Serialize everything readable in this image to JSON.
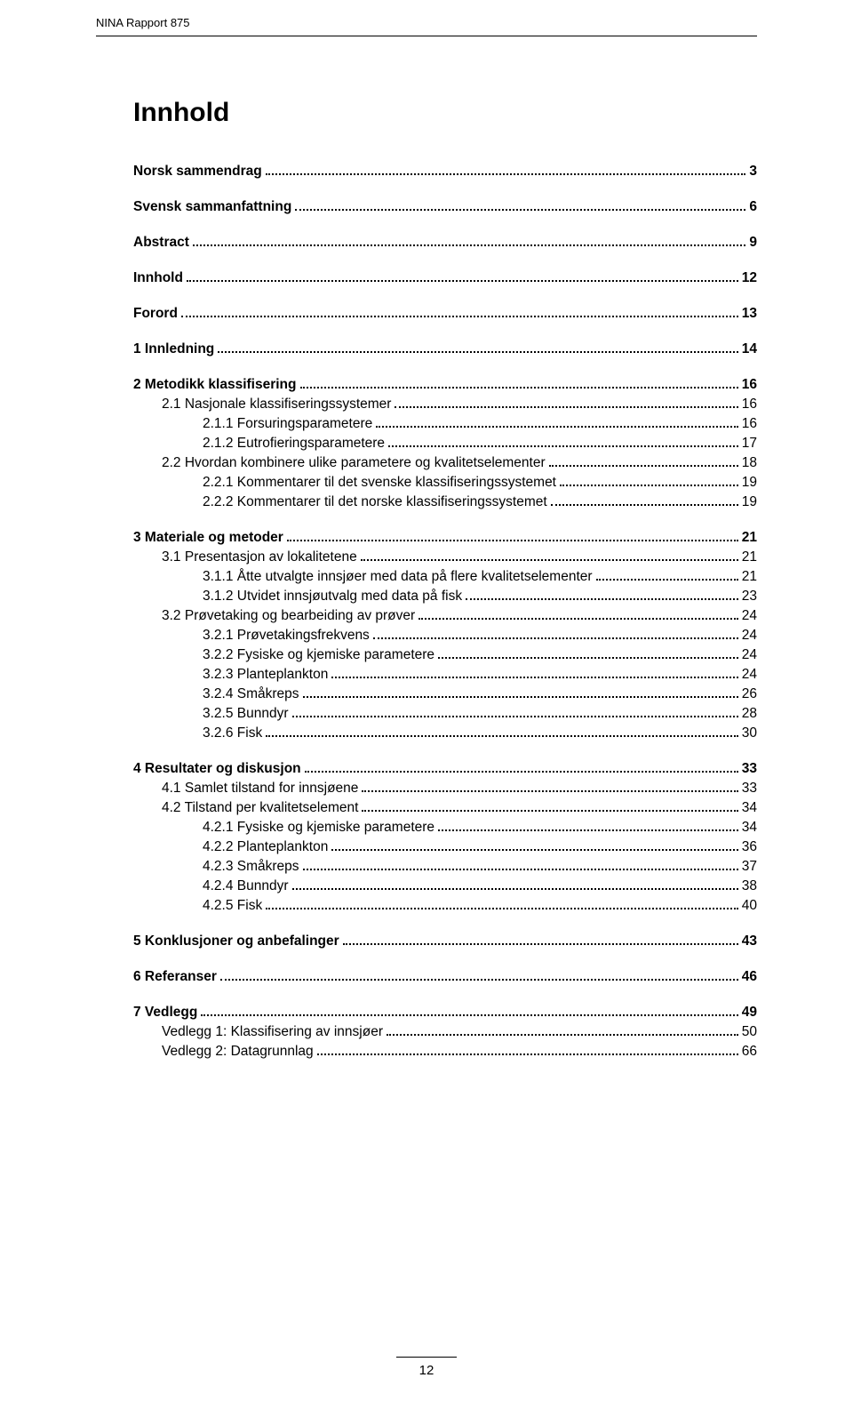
{
  "header": {
    "report_label": "NINA Rapport 875"
  },
  "title": "Innhold",
  "footer": {
    "page_number": "12"
  },
  "toc": [
    {
      "type": "block",
      "items": [
        {
          "label": "Norsk sammendrag",
          "page": "3",
          "indent": 0,
          "bold": true
        }
      ]
    },
    {
      "type": "block",
      "items": [
        {
          "label": "Svensk sammanfattning",
          "page": "6",
          "indent": 0,
          "bold": true
        }
      ]
    },
    {
      "type": "block",
      "items": [
        {
          "label": "Abstract",
          "page": "9",
          "indent": 0,
          "bold": true
        }
      ]
    },
    {
      "type": "block",
      "items": [
        {
          "label": "Innhold",
          "page": "12",
          "indent": 0,
          "bold": true
        }
      ]
    },
    {
      "type": "block",
      "items": [
        {
          "label": "Forord",
          "page": "13",
          "indent": 0,
          "bold": true
        }
      ]
    },
    {
      "type": "block",
      "items": [
        {
          "label": "1  Innledning",
          "page": "14",
          "indent": 0,
          "bold": true
        }
      ]
    },
    {
      "type": "block",
      "items": [
        {
          "label": "2  Metodikk klassifisering",
          "page": "16",
          "indent": 0,
          "bold": true
        },
        {
          "label": "2.1  Nasjonale klassifiseringssystemer",
          "page": "16",
          "indent": 1,
          "bold": false
        },
        {
          "label": "2.1.1  Forsuringsparametere",
          "page": "16",
          "indent": 2,
          "bold": false
        },
        {
          "label": "2.1.2  Eutrofieringsparametere",
          "page": "17",
          "indent": 2,
          "bold": false
        },
        {
          "label": "2.2  Hvordan kombinere ulike parametere og kvalitetselementer",
          "page": "18",
          "indent": 1,
          "bold": false
        },
        {
          "label": "2.2.1  Kommentarer til det svenske klassifiseringssystemet",
          "page": "19",
          "indent": 2,
          "bold": false
        },
        {
          "label": "2.2.2  Kommentarer til det norske klassifiseringssystemet",
          "page": "19",
          "indent": 2,
          "bold": false
        }
      ]
    },
    {
      "type": "block",
      "items": [
        {
          "label": "3  Materiale og metoder",
          "page": "21",
          "indent": 0,
          "bold": true
        },
        {
          "label": "3.1  Presentasjon av lokalitetene",
          "page": "21",
          "indent": 1,
          "bold": false
        },
        {
          "label": "3.1.1  Åtte utvalgte innsjøer med data på flere kvalitetselementer",
          "page": "21",
          "indent": 2,
          "bold": false
        },
        {
          "label": "3.1.2  Utvidet innsjøutvalg med data på fisk",
          "page": "23",
          "indent": 2,
          "bold": false
        },
        {
          "label": "3.2  Prøvetaking og bearbeiding av prøver",
          "page": "24",
          "indent": 1,
          "bold": false
        },
        {
          "label": "3.2.1  Prøvetakingsfrekvens",
          "page": "24",
          "indent": 2,
          "bold": false
        },
        {
          "label": "3.2.2  Fysiske og kjemiske parametere",
          "page": "24",
          "indent": 2,
          "bold": false
        },
        {
          "label": "3.2.3  Planteplankton",
          "page": "24",
          "indent": 2,
          "bold": false
        },
        {
          "label": "3.2.4  Småkreps",
          "page": "26",
          "indent": 2,
          "bold": false
        },
        {
          "label": "3.2.5  Bunndyr",
          "page": "28",
          "indent": 2,
          "bold": false
        },
        {
          "label": "3.2.6  Fisk",
          "page": "30",
          "indent": 2,
          "bold": false
        }
      ]
    },
    {
      "type": "block",
      "items": [
        {
          "label": "4  Resultater og diskusjon",
          "page": "33",
          "indent": 0,
          "bold": true
        },
        {
          "label": "4.1  Samlet tilstand for innsjøene",
          "page": "33",
          "indent": 1,
          "bold": false
        },
        {
          "label": "4.2  Tilstand per kvalitetselement",
          "page": "34",
          "indent": 1,
          "bold": false
        },
        {
          "label": "4.2.1  Fysiske og kjemiske parametere",
          "page": "34",
          "indent": 2,
          "bold": false
        },
        {
          "label": "4.2.2  Planteplankton",
          "page": "36",
          "indent": 2,
          "bold": false
        },
        {
          "label": "4.2.3  Småkreps",
          "page": "37",
          "indent": 2,
          "bold": false
        },
        {
          "label": "4.2.4  Bunndyr",
          "page": "38",
          "indent": 2,
          "bold": false
        },
        {
          "label": "4.2.5  Fisk",
          "page": "40",
          "indent": 2,
          "bold": false
        }
      ]
    },
    {
      "type": "block",
      "items": [
        {
          "label": "5  Konklusjoner og anbefalinger",
          "page": "43",
          "indent": 0,
          "bold": true
        }
      ]
    },
    {
      "type": "block",
      "items": [
        {
          "label": "6  Referanser",
          "page": "46",
          "indent": 0,
          "bold": true
        }
      ]
    },
    {
      "type": "block",
      "items": [
        {
          "label": "7  Vedlegg",
          "page": "49",
          "indent": 0,
          "bold": true
        },
        {
          "label": "Vedlegg 1: Klassifisering av innsjøer",
          "page": "50",
          "indent": 1,
          "bold": false
        },
        {
          "label": "Vedlegg 2: Datagrunnlag",
          "page": "66",
          "indent": 1,
          "bold": false
        }
      ]
    }
  ]
}
